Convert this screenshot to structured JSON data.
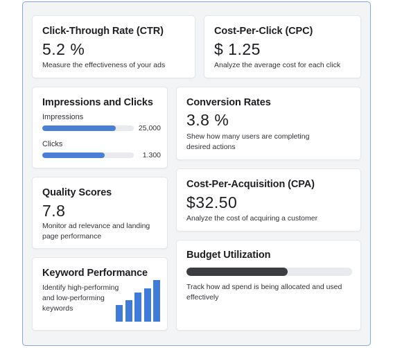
{
  "colors": {
    "accent": "#3f7bd9",
    "budget_fill": "#3b3d42",
    "frame_border": "#7ea7e4"
  },
  "ctr": {
    "title": "Click-Through Rate (CTR)",
    "value": "5.2 %",
    "description": "Measure the effectiveness of your ads"
  },
  "cpc": {
    "title": "Cost-Per-Click (CPC)",
    "value": "$ 1.25",
    "description": "Analyze the average cost for each click"
  },
  "impressions_clicks": {
    "title": "Impressions and Clicks",
    "impressions": {
      "label": "Impressions",
      "value": "25,000",
      "fill_fraction": 0.8
    },
    "clicks": {
      "label": "Clicks",
      "value": "1.300",
      "fill_fraction": 0.68
    }
  },
  "conversion": {
    "title": "Conversion Rates",
    "value": "3.8 %",
    "description": "Shew how many users are completing desired actions"
  },
  "quality": {
    "title": "Quality Scores",
    "value": "7.8",
    "description": "Monitor ad relevance and landing page performance"
  },
  "cpa": {
    "title": "Cost-Per-Acquisition (CPA)",
    "value": "$32.50",
    "description": "Analyze the cost of acquiring a customer"
  },
  "keyword": {
    "title": "Keyword Performance",
    "description": "Identify high-performing and low-performing keywords",
    "bar_levels": [
      0.4,
      0.52,
      0.7,
      0.8,
      1.0
    ]
  },
  "budget": {
    "title": "Budget Utilization",
    "fill_fraction": 0.61,
    "description": "Track how ad spend is being allocated and used effectively"
  }
}
